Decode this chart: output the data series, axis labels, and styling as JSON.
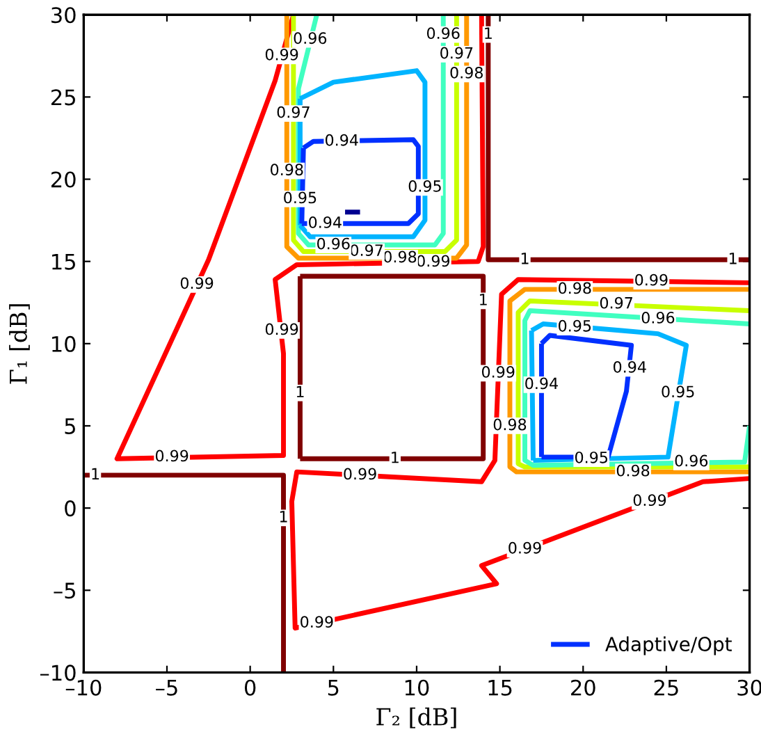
{
  "chart_data": {
    "type": "line",
    "xlabel": "Γ₂ [dB]",
    "ylabel": "Γ₁ [dB]",
    "xlim": [
      -10,
      30
    ],
    "ylim": [
      -10,
      30
    ],
    "xticks": [
      {
        "value": -10,
        "label": "–10"
      },
      {
        "value": -5,
        "label": "–5"
      },
      0,
      5,
      10,
      15,
      20,
      25,
      30
    ],
    "yticks": [
      {
        "value": -10,
        "label": "–10"
      },
      {
        "value": -5,
        "label": "–5"
      },
      0,
      5,
      10,
      15,
      20,
      25,
      30
    ],
    "grid": false,
    "legend": "bottom right",
    "marker": "none",
    "line_style": "solid",
    "series": [
      {
        "color": "#800000",
        "x": [
          -10,
          2.0,
          2.0,
          null,
          3.0,
          14.0,
          14.0,
          3.0,
          null,
          3.0,
          3.0,
          null,
          14.3,
          14.3,
          30
        ],
        "values": [
          2.0,
          2.0,
          -10,
          null,
          3.0,
          3.0,
          14.1,
          14.1,
          null,
          14.1,
          3.0,
          null,
          30,
          15.1,
          15.1
        ]
      },
      {
        "color": "#ff0000",
        "x": [
          2.6,
          1.5,
          -2.5,
          -8.0,
          2.0,
          2.0,
          1.5,
          2.8,
          13.7,
          14.0,
          13.9,
          null,
          30,
          27.2,
          13.9,
          14.8,
          2.7,
          2.5,
          2.8,
          13.9,
          14.7,
          15.1,
          16.1,
          30
        ],
        "values": [
          30,
          26.0,
          15.1,
          3.0,
          3.2,
          9.4,
          13.9,
          14.8,
          15.0,
          15.9,
          30,
          null,
          1.8,
          1.6,
          -3.5,
          -4.6,
          -7.3,
          0.4,
          2.2,
          1.6,
          2.9,
          13.0,
          13.9,
          13.7
        ]
      },
      {
        "color": "#ff9900",
        "x": [
          2.2,
          2.2,
          2.9,
          12.4,
          13.0,
          13.0,
          null,
          30,
          16.5,
          15.6,
          15.6,
          16.0,
          30
        ],
        "values": [
          30,
          15.9,
          15.2,
          15.2,
          16.0,
          30,
          null,
          13.3,
          13.3,
          12.6,
          2.5,
          2.2,
          2.2
        ]
      },
      {
        "color": "#c8ff00",
        "x": [
          2.6,
          2.6,
          3.2,
          11.7,
          12.4,
          12.4,
          null,
          30,
          16.8,
          16.1,
          16.1,
          16.5,
          30
        ],
        "values": [
          30,
          16.3,
          15.6,
          15.6,
          16.3,
          30,
          null,
          12.0,
          12.6,
          11.9,
          2.7,
          2.5,
          2.5
        ]
      },
      {
        "color": "#40ffc0",
        "x": [
          4.0,
          2.9,
          2.9,
          3.5,
          11.1,
          11.6,
          11.6,
          null,
          30,
          16.8,
          16.5,
          16.5,
          17.0,
          29.7,
          30
        ],
        "values": [
          30,
          25.5,
          16.7,
          16.0,
          16.0,
          16.7,
          30,
          null,
          11.2,
          12.0,
          11.4,
          2.9,
          2.6,
          2.8,
          5.0
        ]
      },
      {
        "color": "#00b4ff",
        "x": [
          3.0,
          5.0,
          10.0,
          10.5,
          10.5,
          9.8,
          3.6,
          3.0,
          null,
          3.0,
          3.0,
          null,
          16.9,
          17.6,
          22.3,
          24.5,
          26.2,
          25.1,
          17.0,
          null,
          17.0,
          16.9
        ],
        "values": [
          24.9,
          25.9,
          26.6,
          25.9,
          17.5,
          16.5,
          16.5,
          17.2,
          null,
          17.2,
          24.9,
          null,
          10.8,
          11.2,
          10.8,
          10.6,
          9.9,
          3.1,
          2.9,
          null,
          2.9,
          10.8
        ]
      },
      {
        "name": "Adaptive/Opt",
        "color": "#0030ff",
        "x": [
          3.2,
          3.8,
          9.8,
          10.1,
          10.1,
          9.5,
          3.1,
          null,
          3.1,
          3.2,
          null,
          17.5,
          18.0,
          22.9,
          22.6,
          21.5,
          17.5,
          null,
          17.5,
          17.5
        ],
        "values": [
          21.9,
          22.3,
          22.4,
          22.0,
          17.9,
          17.3,
          17.3,
          null,
          17.3,
          21.9,
          null,
          10.0,
          10.5,
          9.9,
          7.1,
          3.1,
          3.1,
          null,
          3.1,
          10.0
        ]
      },
      {
        "color": "#000090",
        "x": [
          5.7,
          6.6
        ],
        "values": [
          18.0,
          18.0
        ]
      }
    ],
    "annotations": [
      {
        "text": "0.99",
        "x": 1.9,
        "y": 27.5
      },
      {
        "text": "0.99",
        "x": -3.2,
        "y": 13.6
      },
      {
        "text": "0.99",
        "x": -4.7,
        "y": 3.1
      },
      {
        "text": "0.99",
        "x": 1.9,
        "y": 10.8
      },
      {
        "text": "0.99",
        "x": 11.0,
        "y": 14.95
      },
      {
        "text": "0.99",
        "x": 6.6,
        "y": 2.0
      },
      {
        "text": "0.99",
        "x": 4.0,
        "y": -7.0
      },
      {
        "text": "0.99",
        "x": 16.5,
        "y": -2.5
      },
      {
        "text": "0.99",
        "x": 14.9,
        "y": 8.2
      },
      {
        "text": "0.99",
        "x": 24.1,
        "y": 13.8
      },
      {
        "text": "0.99",
        "x": 24.0,
        "y": 0.4
      },
      {
        "text": "0.98",
        "x": 13.0,
        "y": 26.4
      },
      {
        "text": "0.98",
        "x": 9.0,
        "y": 15.2
      },
      {
        "text": "0.98",
        "x": 19.5,
        "y": 13.3
      },
      {
        "text": "0.98",
        "x": 2.2,
        "y": 20.5
      },
      {
        "text": "0.98",
        "x": 15.6,
        "y": 5.0
      },
      {
        "text": "0.98",
        "x": 23.0,
        "y": 2.2
      },
      {
        "text": "0.97",
        "x": 12.4,
        "y": 27.6
      },
      {
        "text": "0.97",
        "x": 7.0,
        "y": 15.6
      },
      {
        "text": "0.97",
        "x": 22.0,
        "y": 12.4
      },
      {
        "text": "0.97",
        "x": 2.6,
        "y": 24.0
      },
      {
        "text": "0.96",
        "x": 11.6,
        "y": 28.8
      },
      {
        "text": "0.96",
        "x": 5.0,
        "y": 16.0
      },
      {
        "text": "0.96",
        "x": 24.5,
        "y": 11.5
      },
      {
        "text": "0.96",
        "x": 3.6,
        "y": 28.5
      },
      {
        "text": "0.96",
        "x": 26.5,
        "y": 2.8
      },
      {
        "text": "0.95",
        "x": 10.5,
        "y": 19.5
      },
      {
        "text": "0.95",
        "x": 19.5,
        "y": 11.0
      },
      {
        "text": "0.95",
        "x": 25.7,
        "y": 7.0
      },
      {
        "text": "0.95",
        "x": 3.0,
        "y": 18.8
      },
      {
        "text": "0.95",
        "x": 20.5,
        "y": 3.0
      },
      {
        "text": "0.94",
        "x": 5.5,
        "y": 22.3
      },
      {
        "text": "0.94",
        "x": 4.5,
        "y": 17.3
      },
      {
        "text": "0.94",
        "x": 17.5,
        "y": 7.5
      },
      {
        "text": "0.94",
        "x": 22.8,
        "y": 8.5
      },
      {
        "text": "1",
        "x": -9.3,
        "y": 2.0
      },
      {
        "text": "1",
        "x": 2.0,
        "y": -0.6
      },
      {
        "text": "1",
        "x": 3.0,
        "y": 7.0
      },
      {
        "text": "1",
        "x": 14.0,
        "y": 12.6
      },
      {
        "text": "1",
        "x": 8.7,
        "y": 3.0
      },
      {
        "text": "1",
        "x": 14.3,
        "y": 28.8
      },
      {
        "text": "1",
        "x": 16.5,
        "y": 15.1
      },
      {
        "text": "1",
        "x": 29.0,
        "y": 15.1
      }
    ]
  }
}
